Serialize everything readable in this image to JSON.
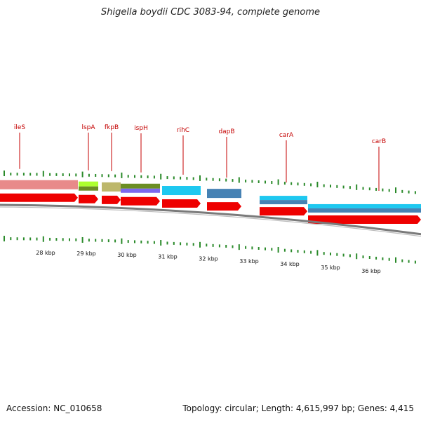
{
  "title": "Shigella boydii CDC 3083-94, complete genome",
  "footer": {
    "accession": "Accession: NC_010658",
    "info": "Topology: circular; Length: 4,615,997 bp; Genes: 4,415"
  },
  "colors": {
    "gene_label": "#c40000",
    "cds_arrow": "#ee0000",
    "tick": "#2a8a2a",
    "backbone": "#7a7a7a"
  },
  "genes": [
    {
      "name": "ileS",
      "color": "#e88a8a"
    },
    {
      "name": "lspA",
      "color": "#9acd32"
    },
    {
      "name": "fkpB",
      "color": "#bdb76b"
    },
    {
      "name": "ispH",
      "color": "#6b8e23"
    },
    {
      "name": "rihC",
      "color": "#1ec8f0"
    },
    {
      "name": "dapB",
      "color": "#4682b4"
    },
    {
      "name": "carA",
      "color": "#1ec8f0"
    },
    {
      "name": "carB",
      "color": "#1ec8f0"
    }
  ],
  "kbp_labels": [
    "28 kbp",
    "29 kbp",
    "30 kbp",
    "31 kbp",
    "32 kbp",
    "33 kbp",
    "34 kbp",
    "35 kbp",
    "36 kbp"
  ]
}
